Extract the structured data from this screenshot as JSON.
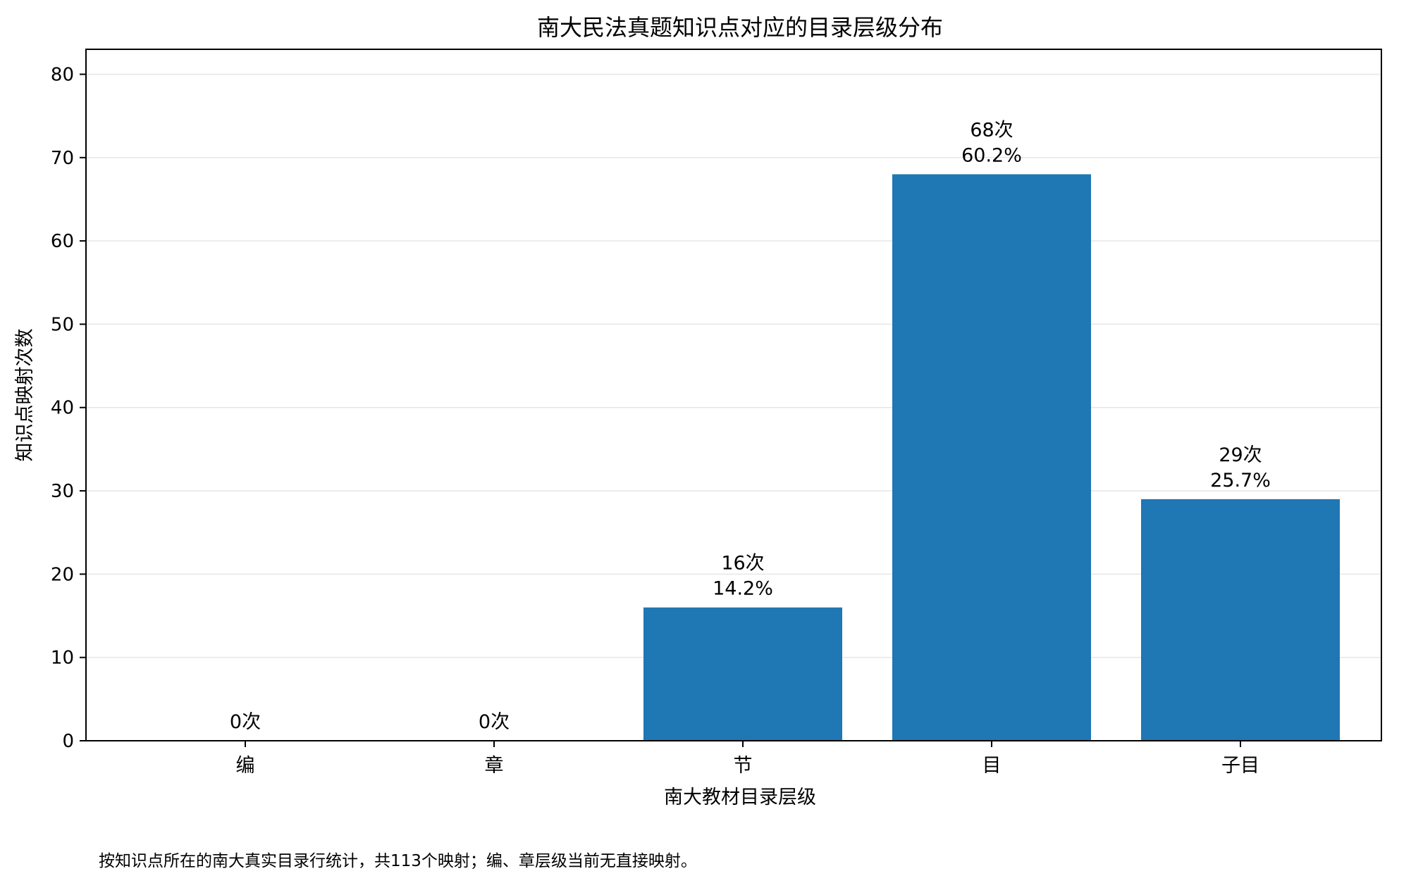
{
  "chart_data": {
    "type": "bar",
    "title": "南大民法真题知识点对应的目录层级分布",
    "xlabel": "南大教材目录层级",
    "ylabel": "知识点映射次数",
    "categories": [
      "编",
      "章",
      "节",
      "目",
      "子目"
    ],
    "values": [
      0,
      0,
      16,
      68,
      29
    ],
    "data_labels": [
      [
        "0次"
      ],
      [
        "0次"
      ],
      [
        "16次",
        "14.2%"
      ],
      [
        "68次",
        "60.2%"
      ],
      [
        "29次",
        "25.7%"
      ]
    ],
    "ylim": [
      0,
      83
    ],
    "yticks": [
      0,
      10,
      20,
      30,
      40,
      50,
      60,
      70,
      80
    ],
    "grid": "horizontal",
    "bar_color": "#1f77b4"
  },
  "footnote": "按知识点所在的南大真实目录行统计，共113个映射；编、章层级当前无直接映射。"
}
